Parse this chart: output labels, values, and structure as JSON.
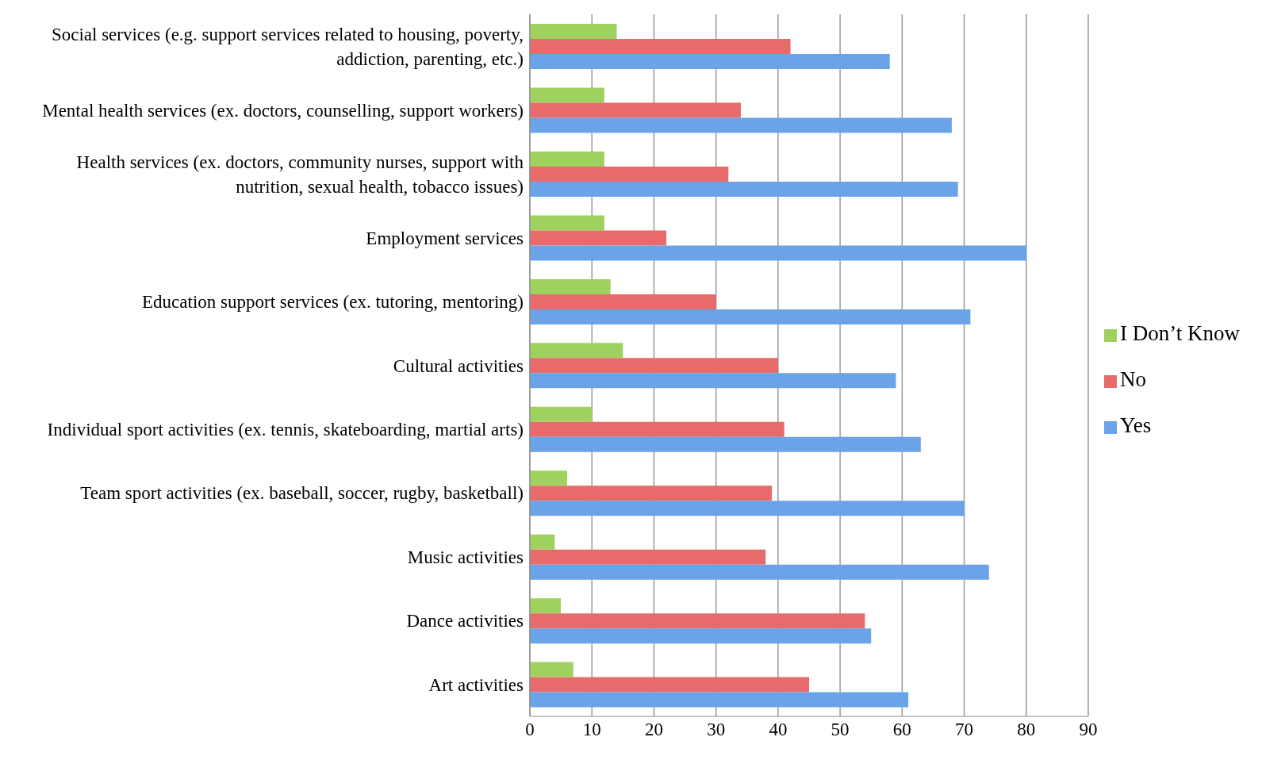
{
  "chart_data": {
    "type": "bar",
    "orientation": "horizontal",
    "categories": [
      "Social services (e.g. support services related to housing, poverty, addiction, parenting, etc.)",
      "Mental health services (ex. doctors, counselling, support workers)",
      "Health services (ex. doctors, community nurses, support with nutrition, sexual health, tobacco issues)",
      "Employment services",
      "Education support services (ex. tutoring, mentoring)",
      "Cultural activities",
      "Individual sport activities (ex. tennis, skateboarding, martial arts)",
      "Team sport activities (ex. baseball, soccer, rugby, basketball)",
      "Music activities",
      "Dance activities",
      "Art activities"
    ],
    "series": [
      {
        "name": "I Don’t Know",
        "color": "#9fd15f",
        "values": [
          14,
          12,
          12,
          12,
          13,
          15,
          10,
          6,
          4,
          5,
          7
        ]
      },
      {
        "name": "No",
        "color": "#e86b6b",
        "values": [
          42,
          34,
          32,
          22,
          30,
          40,
          41,
          39,
          38,
          54,
          45
        ]
      },
      {
        "name": "Yes",
        "color": "#6aa3e8",
        "values": [
          58,
          68,
          69,
          80,
          71,
          59,
          63,
          70,
          74,
          55,
          61
        ]
      }
    ],
    "xlim": [
      0,
      90
    ],
    "xticks": [
      0,
      10,
      20,
      30,
      40,
      50,
      60,
      70,
      80,
      90
    ],
    "grid": "x",
    "legend": "right"
  }
}
